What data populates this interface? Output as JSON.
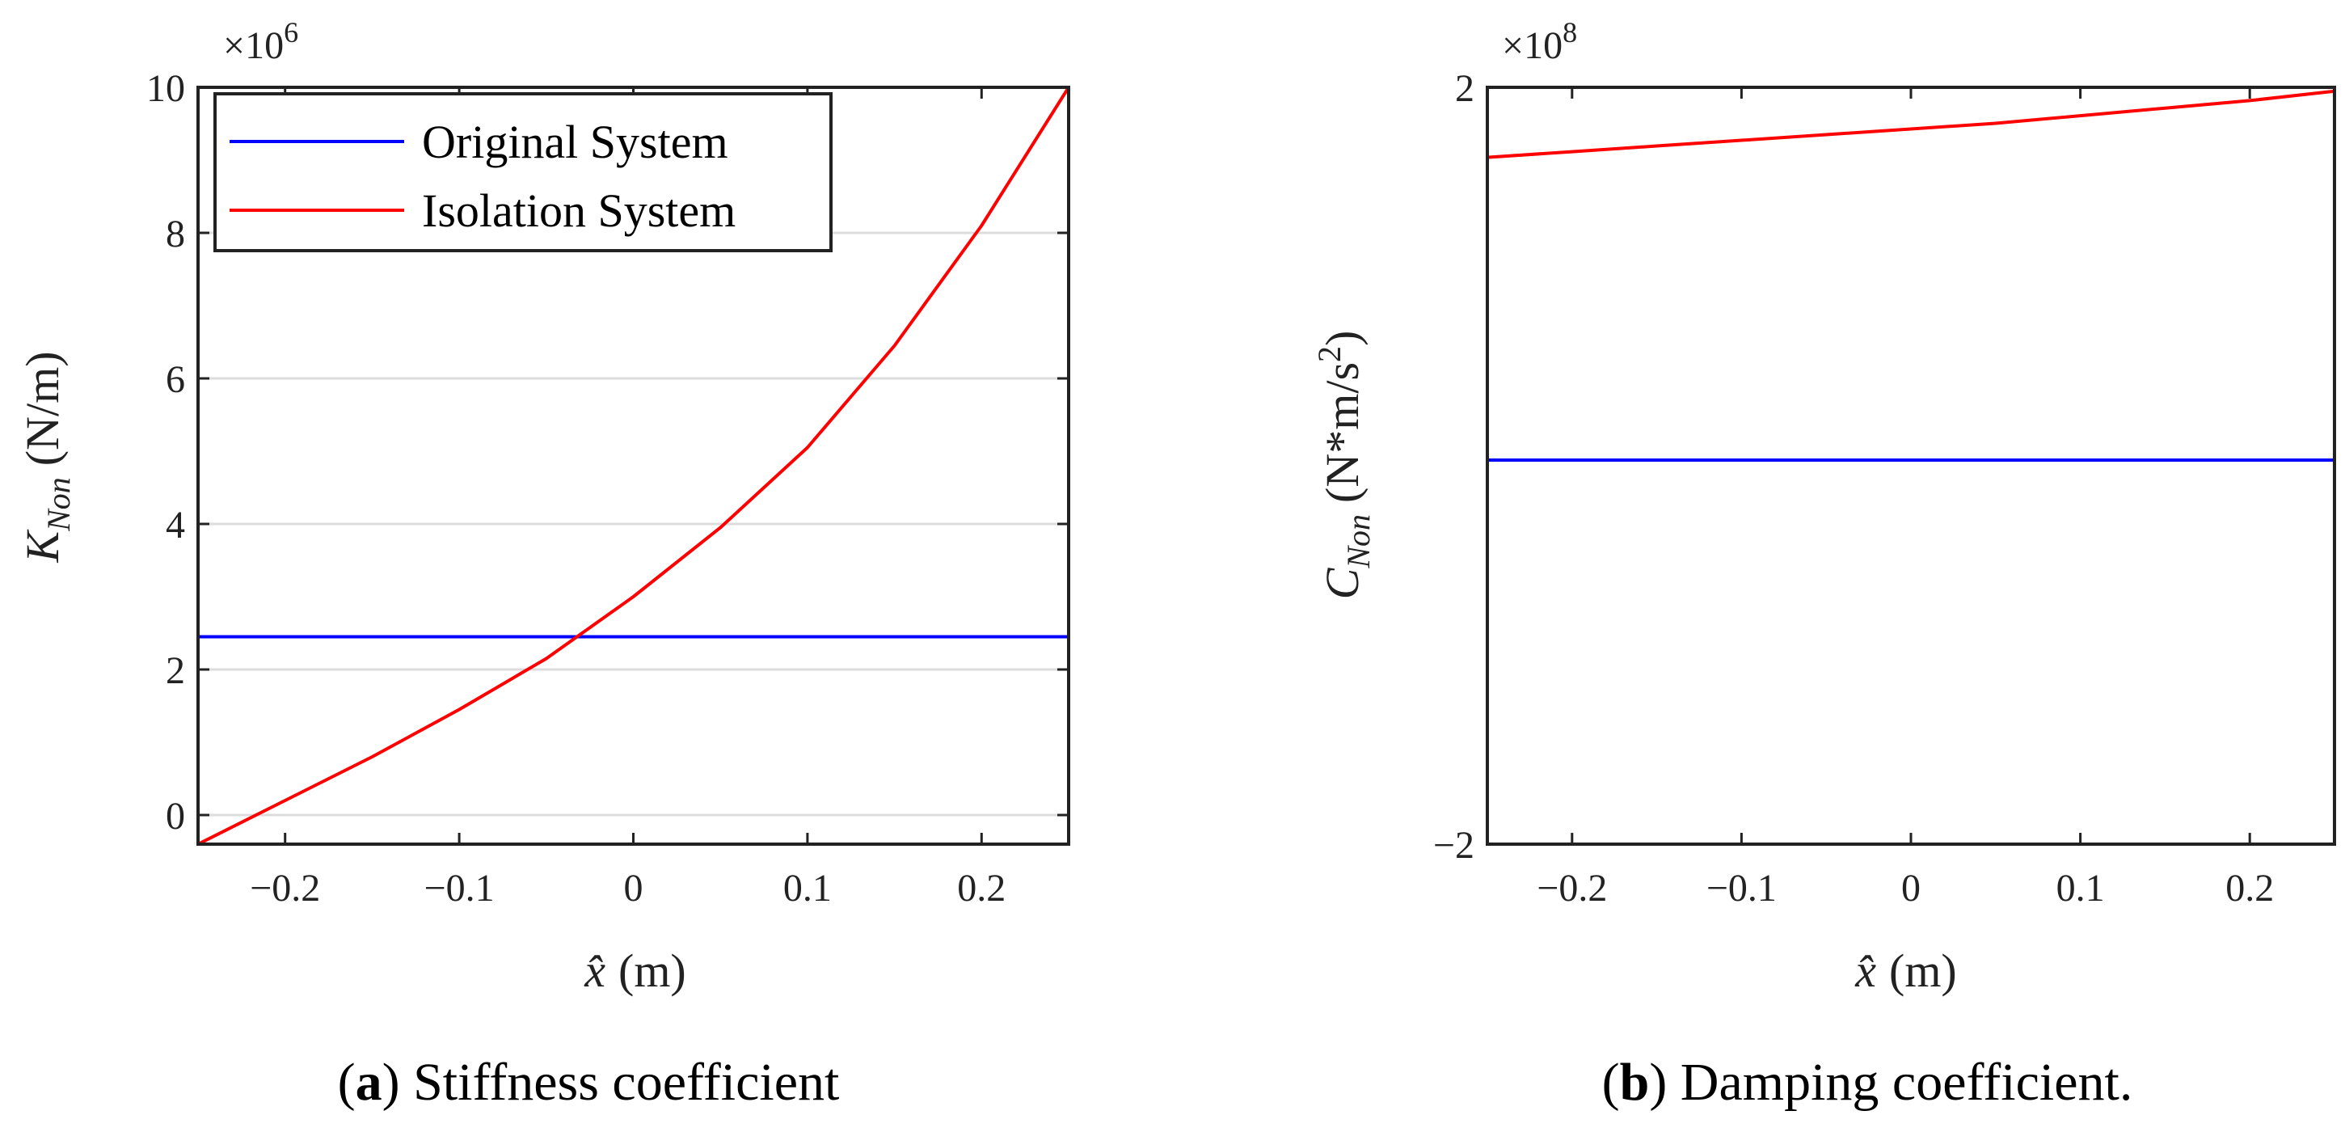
{
  "chart_data": [
    {
      "panel": "a",
      "type": "line",
      "caption_letter": "a",
      "caption_text": "Stiffness coefficient",
      "exponent_prefix": "×10",
      "exponent_power": "6",
      "ylabel_symbol": "K",
      "ylabel_subscript": "Non",
      "ylabel_unit": "(N/m)",
      "xlabel_symbol": "x̂",
      "xlabel_unit": "(m)",
      "xlim": [
        -0.25,
        0.25
      ],
      "ylim": [
        -0.4,
        10
      ],
      "x_ticks": [
        -0.2,
        -0.1,
        0,
        0.1,
        0.2
      ],
      "x_tick_labels": [
        "−0.2",
        "−0.1",
        "0",
        "0.1",
        "0.2"
      ],
      "y_ticks": [
        0,
        2,
        4,
        6,
        8,
        10
      ],
      "y_tick_labels": [
        "0",
        "2",
        "4",
        "6",
        "8",
        "10"
      ],
      "grid": true,
      "legend_position": "top-left",
      "series": [
        {
          "name": "Original System",
          "color": "#0000ff",
          "x": [
            -0.25,
            0.25
          ],
          "y": [
            2.45,
            2.45
          ]
        },
        {
          "name": "Isolation System",
          "color": "#ff0000",
          "x": [
            -0.25,
            -0.2,
            -0.15,
            -0.1,
            -0.05,
            0,
            0.05,
            0.1,
            0.15,
            0.2,
            0.25
          ],
          "y": [
            -0.4,
            0.2,
            0.8,
            1.45,
            2.15,
            3.0,
            3.95,
            5.05,
            6.45,
            8.1,
            10.0
          ]
        }
      ]
    },
    {
      "panel": "b",
      "type": "line",
      "caption_letter": "b",
      "caption_text": "Damping coefficient.",
      "exponent_prefix": "×10",
      "exponent_power": "8",
      "ylabel_symbol": "C",
      "ylabel_subscript": "Non",
      "ylabel_unit": "(N*m/s",
      "ylabel_unit_power": "2",
      "ylabel_unit_close": ")",
      "xlabel_symbol": "x̂",
      "xlabel_unit": "(m)",
      "xlim": [
        -0.25,
        0.25
      ],
      "ylim": [
        -2,
        2
      ],
      "x_ticks": [
        -0.2,
        -0.1,
        0,
        0.1,
        0.2
      ],
      "x_tick_labels": [
        "−0.2",
        "−0.1",
        "0",
        "0.1",
        "0.2"
      ],
      "y_ticks": [
        -2,
        2
      ],
      "y_tick_labels": [
        "−2",
        "2"
      ],
      "grid": false,
      "series": [
        {
          "name": "Original System",
          "color": "#0000ff",
          "x": [
            -0.25,
            0.25
          ],
          "y": [
            0.03,
            0.03
          ]
        },
        {
          "name": "Isolation System",
          "color": "#ff0000",
          "x": [
            -0.25,
            -0.2,
            -0.15,
            -0.1,
            -0.05,
            0,
            0.05,
            0.1,
            0.15,
            0.2,
            0.25
          ],
          "y": [
            1.63,
            1.66,
            1.69,
            1.72,
            1.75,
            1.78,
            1.81,
            1.85,
            1.89,
            1.93,
            1.98
          ]
        }
      ]
    }
  ]
}
